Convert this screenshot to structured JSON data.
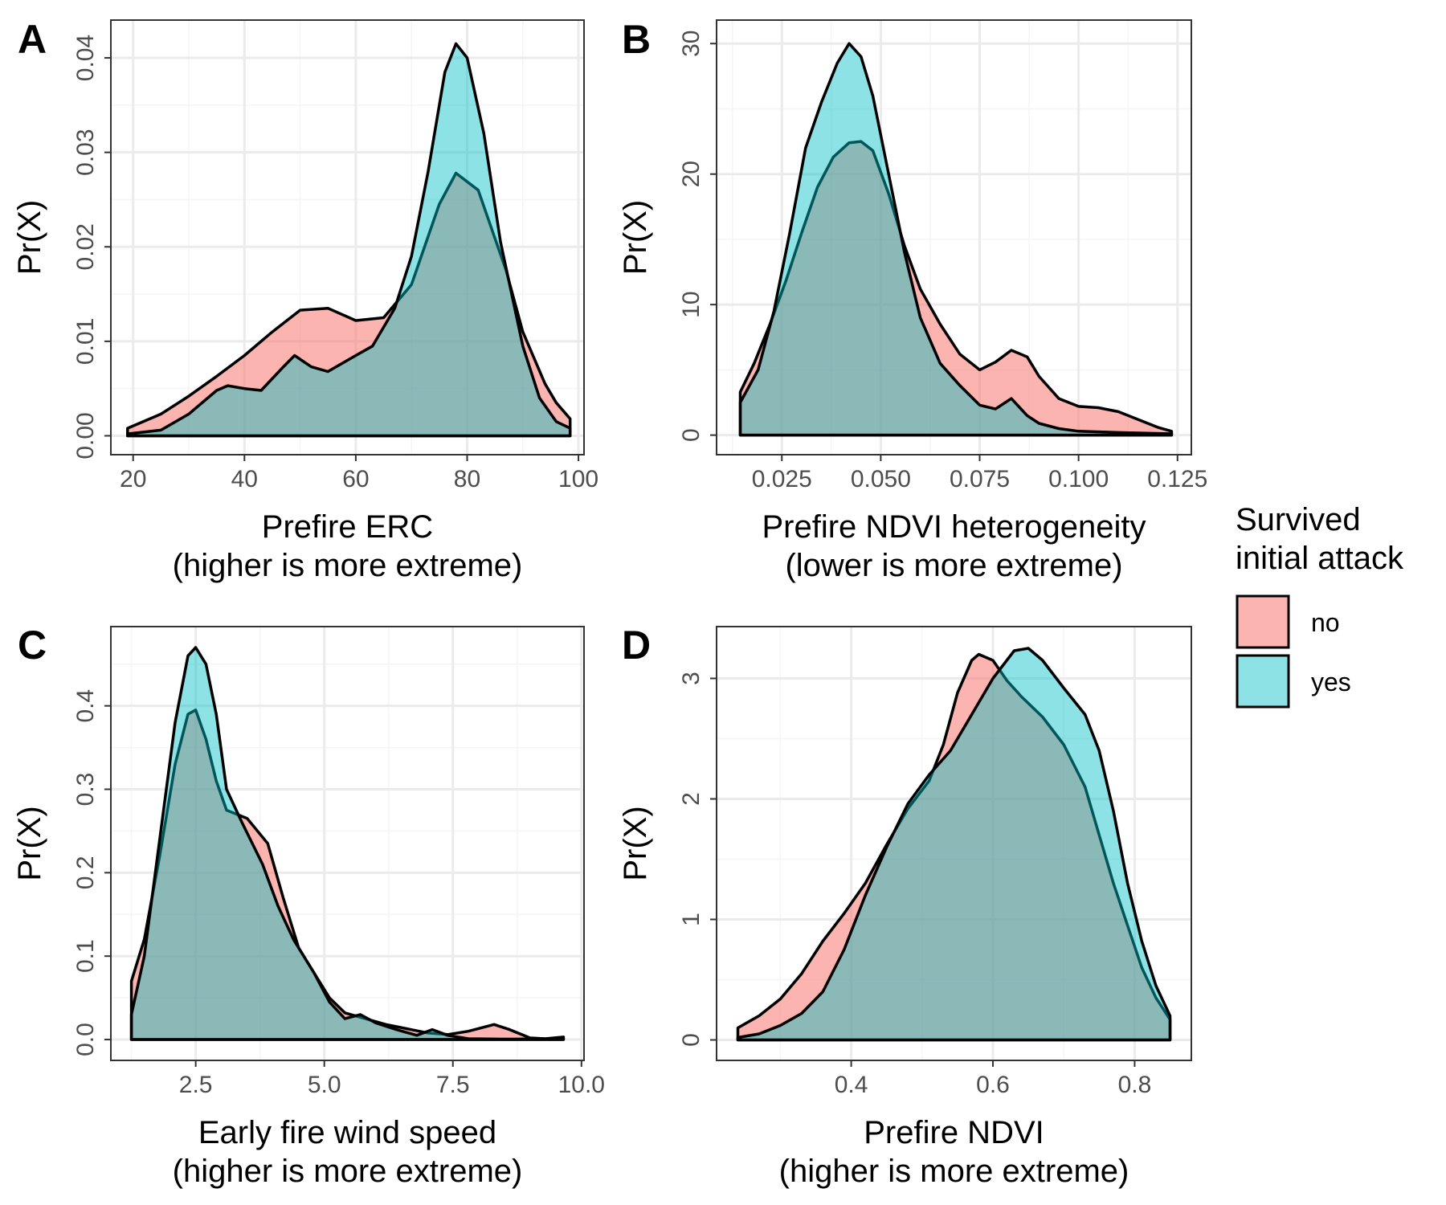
{
  "colors": {
    "no": "#F8766D",
    "yes": "#00BFC4",
    "grid_major": "#ebebeb",
    "grid_minor": "#f5f5f5",
    "outline": "#000000",
    "panel_border": "#333333"
  },
  "legend": {
    "title_line1": "Survived",
    "title_line2": "initial attack",
    "items": [
      {
        "label": "no",
        "color": "#F8766D"
      },
      {
        "label": "yes",
        "color": "#00BFC4"
      }
    ],
    "placement": "right"
  },
  "chart_data": [
    {
      "panel": "A",
      "type": "area",
      "xlabel_line1": "Prefire ERC",
      "xlabel_line2": "(higher is more extreme)",
      "ylabel": "Pr(X)",
      "xlim": [
        16,
        101
      ],
      "ylim": [
        -0.002,
        0.044
      ],
      "x_ticks": [
        20,
        40,
        60,
        80,
        100
      ],
      "x_tick_labels": [
        "20",
        "40",
        "60",
        "80",
        "100"
      ],
      "y_ticks": [
        0,
        0.01,
        0.02,
        0.03,
        0.04
      ],
      "y_tick_labels": [
        "0.00",
        "0.01",
        "0.02",
        "0.03",
        "0.04"
      ],
      "grid": true,
      "series": [
        {
          "name": "no",
          "points": [
            [
              19,
              0.0008
            ],
            [
              25,
              0.0023
            ],
            [
              30,
              0.0042
            ],
            [
              35,
              0.0063
            ],
            [
              40,
              0.0085
            ],
            [
              45,
              0.011
            ],
            [
              50,
              0.0133
            ],
            [
              55,
              0.0135
            ],
            [
              60,
              0.0122
            ],
            [
              65,
              0.0125
            ],
            [
              70,
              0.016
            ],
            [
              75,
              0.0245
            ],
            [
              78,
              0.0278
            ],
            [
              82,
              0.026
            ],
            [
              87,
              0.0175
            ],
            [
              90,
              0.011
            ],
            [
              94,
              0.0055
            ],
            [
              96,
              0.0035
            ],
            [
              98.5,
              0.0018
            ]
          ]
        },
        {
          "name": "yes",
          "points": [
            [
              19,
              0.0002
            ],
            [
              25,
              0.0006
            ],
            [
              30,
              0.0023
            ],
            [
              35,
              0.0048
            ],
            [
              37,
              0.0053
            ],
            [
              40,
              0.005
            ],
            [
              43,
              0.0048
            ],
            [
              47,
              0.0073
            ],
            [
              49,
              0.0085
            ],
            [
              52,
              0.0073
            ],
            [
              55,
              0.0068
            ],
            [
              60,
              0.0085
            ],
            [
              63,
              0.0095
            ],
            [
              67,
              0.0135
            ],
            [
              70,
              0.019
            ],
            [
              73,
              0.028
            ],
            [
              76,
              0.0385
            ],
            [
              78,
              0.0415
            ],
            [
              80,
              0.04
            ],
            [
              83,
              0.032
            ],
            [
              86,
              0.0205
            ],
            [
              90,
              0.0095
            ],
            [
              93,
              0.004
            ],
            [
              96,
              0.0015
            ],
            [
              98.5,
              0.0008
            ]
          ]
        }
      ]
    },
    {
      "panel": "B",
      "type": "area",
      "xlabel_line1": "Prefire NDVI heterogeneity",
      "xlabel_line2": "(lower is more extreme)",
      "ylabel": "Pr(X)",
      "xlim": [
        0.0085,
        0.1285
      ],
      "ylim": [
        -1.5,
        31.8
      ],
      "x_ticks": [
        0.025,
        0.05,
        0.075,
        0.1,
        0.125
      ],
      "x_tick_labels": [
        "0.025",
        "0.050",
        "0.075",
        "0.100",
        "0.125"
      ],
      "y_ticks": [
        0,
        10,
        20,
        30
      ],
      "y_tick_labels": [
        "0",
        "10",
        "20",
        "30"
      ],
      "grid": true,
      "series": [
        {
          "name": "no",
          "points": [
            [
              0.0145,
              3.3
            ],
            [
              0.018,
              5.5
            ],
            [
              0.022,
              8.5
            ],
            [
              0.026,
              11.8
            ],
            [
              0.03,
              15.5
            ],
            [
              0.034,
              19.0
            ],
            [
              0.038,
              21.3
            ],
            [
              0.042,
              22.4
            ],
            [
              0.045,
              22.5
            ],
            [
              0.048,
              21.8
            ],
            [
              0.052,
              18.5
            ],
            [
              0.056,
              14.5
            ],
            [
              0.06,
              11.2
            ],
            [
              0.065,
              8.5
            ],
            [
              0.07,
              6.2
            ],
            [
              0.075,
              5.0
            ],
            [
              0.079,
              5.6
            ],
            [
              0.083,
              6.5
            ],
            [
              0.087,
              6.0
            ],
            [
              0.09,
              4.5
            ],
            [
              0.095,
              2.8
            ],
            [
              0.1,
              2.2
            ],
            [
              0.105,
              2.1
            ],
            [
              0.11,
              1.8
            ],
            [
              0.115,
              1.2
            ],
            [
              0.12,
              0.6
            ],
            [
              0.1235,
              0.3
            ]
          ]
        },
        {
          "name": "yes",
          "points": [
            [
              0.0145,
              2.5
            ],
            [
              0.019,
              5.0
            ],
            [
              0.023,
              9.5
            ],
            [
              0.027,
              15.5
            ],
            [
              0.031,
              22.0
            ],
            [
              0.035,
              25.5
            ],
            [
              0.039,
              28.5
            ],
            [
              0.042,
              30.0
            ],
            [
              0.045,
              29.0
            ],
            [
              0.048,
              26.0
            ],
            [
              0.052,
              20.0
            ],
            [
              0.056,
              14.0
            ],
            [
              0.06,
              9.0
            ],
            [
              0.065,
              5.5
            ],
            [
              0.07,
              3.8
            ],
            [
              0.075,
              2.3
            ],
            [
              0.079,
              2.0
            ],
            [
              0.083,
              2.8
            ],
            [
              0.087,
              1.5
            ],
            [
              0.09,
              0.9
            ],
            [
              0.095,
              0.5
            ],
            [
              0.1,
              0.3
            ],
            [
              0.11,
              0.2
            ],
            [
              0.1235,
              0.1
            ]
          ]
        }
      ]
    },
    {
      "panel": "C",
      "type": "area",
      "xlabel_line1": "Early fire wind speed",
      "xlabel_line2": "(higher is more extreme)",
      "ylabel": "Pr(X)",
      "xlim": [
        0.85,
        10.05
      ],
      "ylim": [
        -0.025,
        0.495
      ],
      "x_ticks": [
        2.5,
        5.0,
        7.5,
        10.0
      ],
      "x_tick_labels": [
        "2.5",
        "5.0",
        "7.5",
        "10.0"
      ],
      "y_ticks": [
        0,
        0.1,
        0.2,
        0.3,
        0.4
      ],
      "y_tick_labels": [
        "0.0",
        "0.1",
        "0.2",
        "0.3",
        "0.4"
      ],
      "grid": true,
      "series": [
        {
          "name": "no",
          "points": [
            [
              1.25,
              0.07
            ],
            [
              1.5,
              0.12
            ],
            [
              1.8,
              0.22
            ],
            [
              2.1,
              0.33
            ],
            [
              2.35,
              0.39
            ],
            [
              2.5,
              0.395
            ],
            [
              2.7,
              0.36
            ],
            [
              2.9,
              0.31
            ],
            [
              3.1,
              0.275
            ],
            [
              3.5,
              0.265
            ],
            [
              3.9,
              0.235
            ],
            [
              4.2,
              0.17
            ],
            [
              4.5,
              0.11
            ],
            [
              4.8,
              0.08
            ],
            [
              5.1,
              0.05
            ],
            [
              5.4,
              0.032
            ],
            [
              5.8,
              0.025
            ],
            [
              6.2,
              0.018
            ],
            [
              6.6,
              0.013
            ],
            [
              7.0,
              0.008
            ],
            [
              7.4,
              0.006
            ],
            [
              7.8,
              0.01
            ],
            [
              8.3,
              0.018
            ],
            [
              8.6,
              0.012
            ],
            [
              9.0,
              0.002
            ],
            [
              9.3,
              0.001
            ],
            [
              9.65,
              0.003
            ]
          ]
        },
        {
          "name": "yes",
          "points": [
            [
              1.25,
              0.03
            ],
            [
              1.5,
              0.1
            ],
            [
              1.8,
              0.24
            ],
            [
              2.1,
              0.38
            ],
            [
              2.35,
              0.46
            ],
            [
              2.5,
              0.47
            ],
            [
              2.7,
              0.45
            ],
            [
              2.9,
              0.39
            ],
            [
              3.1,
              0.3
            ],
            [
              3.4,
              0.26
            ],
            [
              3.8,
              0.21
            ],
            [
              4.1,
              0.16
            ],
            [
              4.4,
              0.12
            ],
            [
              4.8,
              0.08
            ],
            [
              5.1,
              0.045
            ],
            [
              5.4,
              0.025
            ],
            [
              5.7,
              0.03
            ],
            [
              6.0,
              0.02
            ],
            [
              6.4,
              0.012
            ],
            [
              6.8,
              0.005
            ],
            [
              7.1,
              0.012
            ],
            [
              7.4,
              0.005
            ],
            [
              7.8,
              0.001
            ],
            [
              8.5,
              0.0005
            ],
            [
              9.65,
              0.001
            ]
          ]
        }
      ]
    },
    {
      "panel": "D",
      "type": "area",
      "xlabel_line1": "Prefire NDVI",
      "xlabel_line2": "(higher is more extreme)",
      "ylabel": "Pr(X)",
      "xlim": [
        0.21,
        0.88
      ],
      "ylim": [
        -0.17,
        3.43
      ],
      "x_ticks": [
        0.4,
        0.6,
        0.8
      ],
      "x_tick_labels": [
        "0.4",
        "0.6",
        "0.8"
      ],
      "y_ticks": [
        0,
        1,
        2,
        3
      ],
      "y_tick_labels": [
        "0",
        "1",
        "2",
        "3"
      ],
      "grid": true,
      "series": [
        {
          "name": "no",
          "points": [
            [
              0.24,
              0.1
            ],
            [
              0.27,
              0.2
            ],
            [
              0.3,
              0.34
            ],
            [
              0.33,
              0.55
            ],
            [
              0.36,
              0.82
            ],
            [
              0.39,
              1.05
            ],
            [
              0.42,
              1.3
            ],
            [
              0.45,
              1.62
            ],
            [
              0.48,
              1.92
            ],
            [
              0.51,
              2.15
            ],
            [
              0.53,
              2.45
            ],
            [
              0.55,
              2.88
            ],
            [
              0.57,
              3.15
            ],
            [
              0.58,
              3.2
            ],
            [
              0.6,
              3.15
            ],
            [
              0.62,
              2.98
            ],
            [
              0.64,
              2.85
            ],
            [
              0.67,
              2.68
            ],
            [
              0.7,
              2.45
            ],
            [
              0.73,
              2.1
            ],
            [
              0.75,
              1.7
            ],
            [
              0.77,
              1.3
            ],
            [
              0.79,
              0.95
            ],
            [
              0.81,
              0.6
            ],
            [
              0.83,
              0.35
            ],
            [
              0.85,
              0.17
            ]
          ]
        },
        {
          "name": "yes",
          "points": [
            [
              0.24,
              0.02
            ],
            [
              0.27,
              0.05
            ],
            [
              0.3,
              0.12
            ],
            [
              0.33,
              0.22
            ],
            [
              0.36,
              0.4
            ],
            [
              0.39,
              0.75
            ],
            [
              0.42,
              1.2
            ],
            [
              0.45,
              1.6
            ],
            [
              0.48,
              1.96
            ],
            [
              0.51,
              2.2
            ],
            [
              0.54,
              2.4
            ],
            [
              0.57,
              2.7
            ],
            [
              0.6,
              3.0
            ],
            [
              0.63,
              3.23
            ],
            [
              0.65,
              3.25
            ],
            [
              0.67,
              3.15
            ],
            [
              0.7,
              2.92
            ],
            [
              0.73,
              2.7
            ],
            [
              0.75,
              2.4
            ],
            [
              0.77,
              1.9
            ],
            [
              0.79,
              1.3
            ],
            [
              0.81,
              0.82
            ],
            [
              0.83,
              0.45
            ],
            [
              0.85,
              0.2
            ]
          ]
        }
      ]
    }
  ]
}
